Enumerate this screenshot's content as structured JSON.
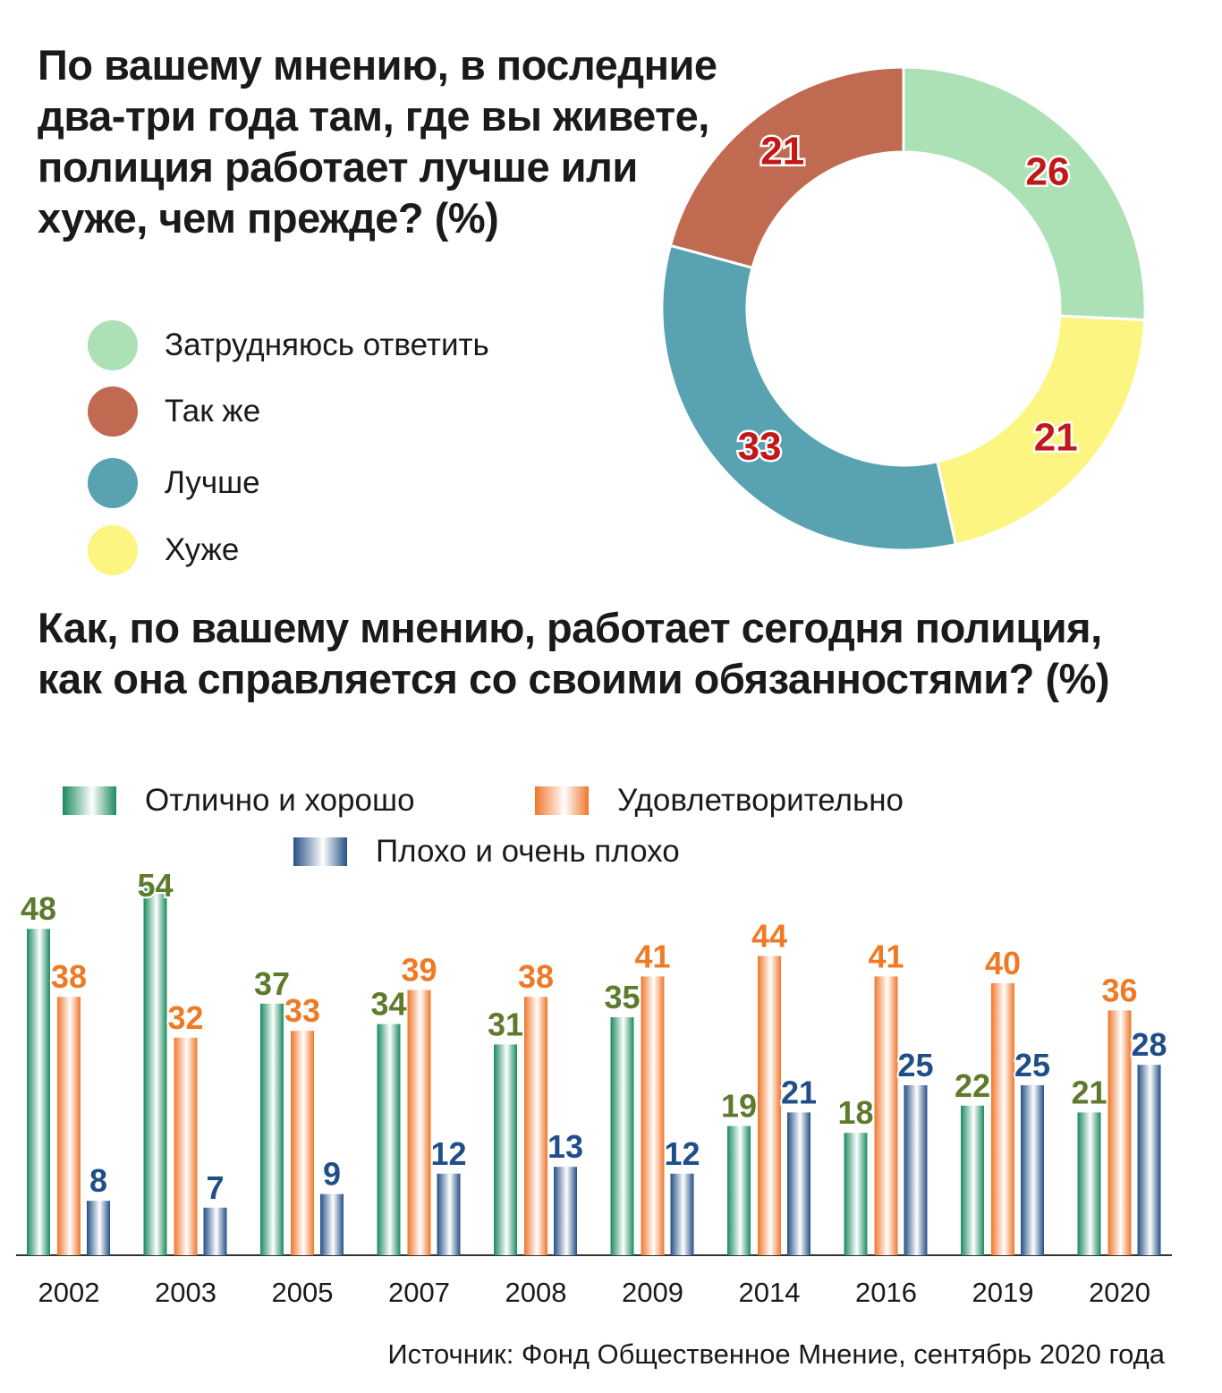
{
  "donut_title": "По вашему мнению, в последние два-три года там, где вы живете, полиция работает лучше или хуже, чем прежде? (%)",
  "bar_title": "Как, по вашему мнению, работает сегодня полиция, как она справляется со своими обязанностями? (%)",
  "source": "Источник: Фонд Общественное Мнение, сентябрь 2020 года",
  "chart_data": [
    {
      "type": "pie",
      "title": "По вашему мнению, в последние два-три года там, где вы живете, полиция работает лучше или хуже, чем прежде? (%)",
      "labels": [
        "Затрудняюсь ответить",
        "Хуже",
        "Лучше",
        "Так же"
      ],
      "values": [
        26,
        21,
        33,
        21
      ],
      "colors": [
        "#ace0b5",
        "#fcf582",
        "#58a2b2",
        "#c06a52"
      ],
      "label_color": "#c21818",
      "donut": true,
      "legend": [
        {
          "label": "Затрудняюсь ответить",
          "color": "#ace0b5"
        },
        {
          "label": "Так же",
          "color": "#c06a52"
        },
        {
          "label": "Лучше",
          "color": "#58a2b2"
        },
        {
          "label": "Хуже",
          "color": "#fcf582"
        }
      ],
      "legend_position": "left"
    },
    {
      "type": "bar",
      "title": "Как, по вашему мнению, работает сегодня полиция, как она справляется со своими обязанностями? (%)",
      "categories": [
        "2002",
        "2003",
        "2005",
        "2007",
        "2008",
        "2009",
        "2014",
        "2016",
        "2019",
        "2020"
      ],
      "series": [
        {
          "name": "Отлично и хорошо",
          "values": [
            48,
            54,
            37,
            34,
            31,
            35,
            19,
            18,
            22,
            21
          ],
          "color": "#1a8a5e",
          "label_color": "#5e7a2c"
        },
        {
          "name": "Удовлетворительно",
          "values": [
            38,
            32,
            33,
            39,
            38,
            41,
            44,
            41,
            40,
            36
          ],
          "color": "#f0762a",
          "label_color": "#ef7a25"
        },
        {
          "name": "Плохо и очень плохо",
          "values": [
            8,
            7,
            9,
            12,
            13,
            12,
            21,
            25,
            25,
            28
          ],
          "color": "#234f86",
          "label_color": "#1f4f88"
        }
      ],
      "ylim": [
        0,
        55
      ],
      "legend_position": "top",
      "grid": false
    }
  ]
}
